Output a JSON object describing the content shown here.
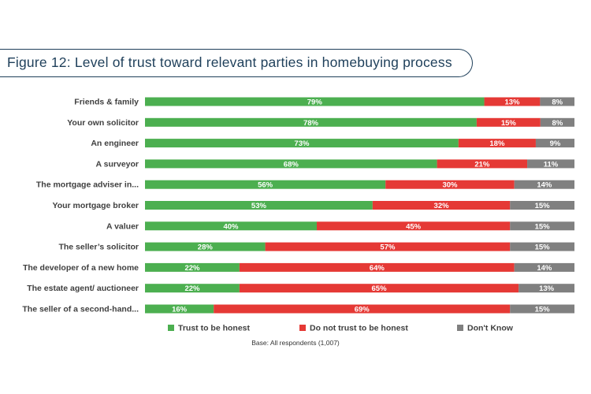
{
  "chart_data": {
    "type": "bar",
    "orientation": "horizontal",
    "stacked": "percent",
    "title": "Figure 12: Level of trust toward relevant parties in homebuying process",
    "categories": [
      "Friends & family",
      "Your own solicitor",
      "An engineer",
      "A surveyor",
      "The mortgage adviser in...",
      "Your mortgage broker",
      "A valuer",
      "The seller’s solicitor",
      "The developer of a new home",
      "The estate agent/ auctioneer",
      "The seller of a second-hand..."
    ],
    "series": [
      {
        "name": "Trust to be honest",
        "color": "#4caf50",
        "values": [
          79,
          78,
          73,
          68,
          56,
          53,
          40,
          28,
          22,
          22,
          16
        ]
      },
      {
        "name": "Do not trust to be honest",
        "color": "#e53935",
        "values": [
          13,
          15,
          18,
          21,
          30,
          32,
          45,
          57,
          64,
          65,
          69
        ]
      },
      {
        "name": "Don't Know",
        "color": "#808080",
        "values": [
          8,
          8,
          9,
          11,
          14,
          15,
          15,
          15,
          14,
          13,
          15
        ]
      }
    ],
    "value_suffix": "%",
    "legend_position": "bottom",
    "grid": false,
    "note": "Base: All respondents (1,007)"
  }
}
